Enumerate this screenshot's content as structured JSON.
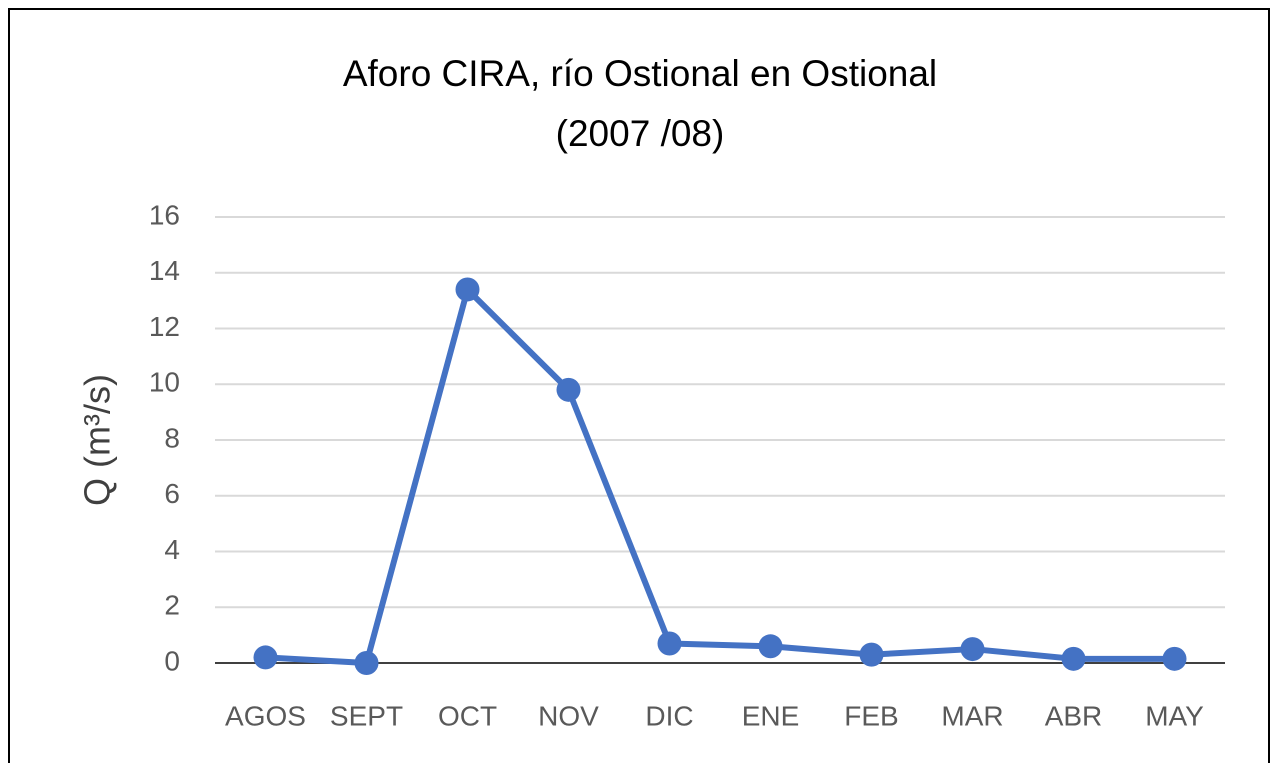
{
  "chart_data": {
    "type": "line",
    "title": "Aforo CIRA, río Ostional en Ostional",
    "subtitle": "(2007 /08)",
    "y_label": "Q (m³/s)",
    "categories": [
      "AGOS",
      "SEPT",
      "OCT",
      "NOV",
      "DIC",
      "ENE",
      "FEB",
      "MAR",
      "ABR",
      "MAY"
    ],
    "series": [
      {
        "name": "Q",
        "color": "#4472c4",
        "values": [
          0.2,
          0.0,
          13.4,
          9.8,
          0.7,
          0.6,
          0.3,
          0.5,
          0.15,
          0.15
        ]
      }
    ],
    "ylim": [
      0,
      16
    ],
    "yticks": [
      0,
      2,
      4,
      6,
      8,
      10,
      12,
      14,
      16
    ],
    "grid": true
  }
}
